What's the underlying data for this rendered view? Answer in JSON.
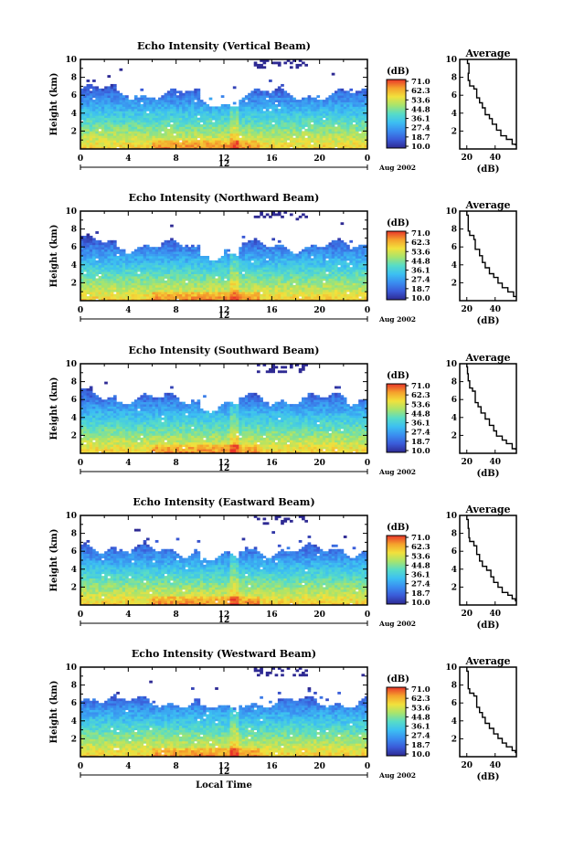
{
  "colors": {
    "colormap": [
      "#2e2a93",
      "#3a5bd8",
      "#3a8ef0",
      "#3cc0f2",
      "#57dcc7",
      "#a8e46c",
      "#f2e13c",
      "#f5a22c",
      "#e8352a"
    ],
    "no_data": "#ffffff",
    "line": "#000000"
  },
  "chart_data": [
    {
      "type": "heatmap",
      "title": "Echo Intensity (Vertical Beam)",
      "xlabel": "",
      "ylabel": "Height (km)",
      "xlim": [
        0,
        24
      ],
      "ylim": [
        0,
        10
      ],
      "xticks": [
        "0",
        "4",
        "8",
        "12",
        "16",
        "20",
        "0"
      ],
      "yticks": [
        "2",
        "4",
        "6",
        "8",
        "10"
      ],
      "secondary_tick": "12",
      "date_label": "Aug 2002",
      "colorbar": {
        "label": "(dB)",
        "ticks": [
          "71.0",
          "62.3",
          "53.6",
          "44.8",
          "36.1",
          "27.4",
          "18.7",
          "10.0"
        ],
        "range": [
          10.0,
          71.0
        ]
      },
      "average_profile": {
        "title": "Average",
        "xlabel": "(dB)",
        "xticks": [
          "20",
          "40"
        ],
        "xlim": [
          15,
          55
        ],
        "points": [
          [
            20.5,
            10.0
          ],
          [
            21.5,
            9.0
          ],
          [
            21.0,
            8.0
          ],
          [
            22.0,
            7.2
          ],
          [
            25.0,
            7.0
          ],
          [
            27.0,
            6.5
          ],
          [
            27.0,
            6.0
          ],
          [
            29.0,
            5.4
          ],
          [
            31.0,
            4.8
          ],
          [
            33.0,
            4.2
          ],
          [
            36.0,
            3.6
          ],
          [
            38.0,
            3.0
          ],
          [
            41.0,
            2.4
          ],
          [
            44.0,
            1.8
          ],
          [
            48.0,
            1.2
          ],
          [
            52.0,
            0.8
          ],
          [
            55.0,
            0.4
          ]
        ]
      }
    },
    {
      "type": "heatmap",
      "title": "Echo Intensity (Northward Beam)",
      "xlabel": "",
      "ylabel": "Height (km)",
      "xlim": [
        0,
        24
      ],
      "ylim": [
        0,
        10
      ],
      "xticks": [
        "0",
        "4",
        "8",
        "12",
        "16",
        "20",
        "0"
      ],
      "yticks": [
        "2",
        "4",
        "6",
        "8",
        "10"
      ],
      "secondary_tick": "12",
      "date_label": "Aug 2002",
      "colorbar": {
        "label": "(dB)",
        "ticks": [
          "71.0",
          "62.3",
          "53.6",
          "44.8",
          "36.1",
          "27.4",
          "18.7",
          "10.0"
        ],
        "range": [
          10.0,
          71.0
        ]
      },
      "average_profile": {
        "title": "Average",
        "xlabel": "(dB)",
        "xticks": [
          "20",
          "40"
        ],
        "xlim": [
          15,
          55
        ],
        "points": [
          [
            20.0,
            10.0
          ],
          [
            21.0,
            9.0
          ],
          [
            21.0,
            8.0
          ],
          [
            22.0,
            7.4
          ],
          [
            25.0,
            7.1
          ],
          [
            26.0,
            6.5
          ],
          [
            26.0,
            6.0
          ],
          [
            29.0,
            5.3
          ],
          [
            31.0,
            4.6
          ],
          [
            33.0,
            4.0
          ],
          [
            36.0,
            3.4
          ],
          [
            39.0,
            2.8
          ],
          [
            42.0,
            2.2
          ],
          [
            45.0,
            1.6
          ],
          [
            49.0,
            1.1
          ],
          [
            53.0,
            0.7
          ],
          [
            56.0,
            0.4
          ]
        ]
      }
    },
    {
      "type": "heatmap",
      "title": "Echo Intensity (Southward Beam)",
      "xlabel": "",
      "ylabel": "Height (km)",
      "xlim": [
        0,
        24
      ],
      "ylim": [
        0,
        10
      ],
      "xticks": [
        "0",
        "4",
        "8",
        "12",
        "16",
        "20",
        "0"
      ],
      "yticks": [
        "2",
        "4",
        "6",
        "8",
        "10"
      ],
      "secondary_tick": "12",
      "date_label": "Aug 2002",
      "colorbar": {
        "label": "(dB)",
        "ticks": [
          "71.0",
          "62.3",
          "53.6",
          "44.8",
          "36.1",
          "27.4",
          "18.7",
          "10.0"
        ],
        "range": [
          10.0,
          71.0
        ]
      },
      "average_profile": {
        "title": "Average",
        "xlabel": "(dB)",
        "xticks": [
          "20",
          "40"
        ],
        "xlim": [
          15,
          55
        ],
        "points": [
          [
            20.0,
            10.0
          ],
          [
            20.5,
            9.2
          ],
          [
            21.0,
            8.4
          ],
          [
            22.0,
            7.6
          ],
          [
            24.0,
            7.1
          ],
          [
            26.0,
            6.6
          ],
          [
            26.0,
            6.0
          ],
          [
            28.0,
            5.4
          ],
          [
            30.0,
            4.8
          ],
          [
            33.0,
            4.1
          ],
          [
            36.0,
            3.5
          ],
          [
            39.0,
            2.9
          ],
          [
            41.0,
            2.3
          ],
          [
            45.0,
            1.7
          ],
          [
            48.0,
            1.2
          ],
          [
            52.0,
            0.8
          ],
          [
            55.0,
            0.4
          ]
        ]
      }
    },
    {
      "type": "heatmap",
      "title": "Echo Intensity (Eastward Beam)",
      "xlabel": "",
      "ylabel": "Height (km)",
      "xlim": [
        0,
        24
      ],
      "ylim": [
        0,
        10
      ],
      "xticks": [
        "0",
        "4",
        "8",
        "12",
        "16",
        "20",
        "0"
      ],
      "yticks": [
        "2",
        "4",
        "6",
        "8",
        "10"
      ],
      "secondary_tick": "12",
      "date_label": "Aug 2002",
      "colorbar": {
        "label": "(dB)",
        "ticks": [
          "71.0",
          "62.3",
          "53.6",
          "44.8",
          "36.1",
          "27.4",
          "18.7",
          "10.0"
        ],
        "range": [
          10.0,
          71.0
        ]
      },
      "average_profile": {
        "title": "Average",
        "xlabel": "(dB)",
        "xticks": [
          "20",
          "40"
        ],
        "xlim": [
          15,
          55
        ],
        "points": [
          [
            20.0,
            10.0
          ],
          [
            21.0,
            9.0
          ],
          [
            21.5,
            8.0
          ],
          [
            22.0,
            7.2
          ],
          [
            25.0,
            6.9
          ],
          [
            27.0,
            6.4
          ],
          [
            27.0,
            5.9
          ],
          [
            29.0,
            5.3
          ],
          [
            31.0,
            4.7
          ],
          [
            34.0,
            4.1
          ],
          [
            37.0,
            3.5
          ],
          [
            39.0,
            2.9
          ],
          [
            42.0,
            2.3
          ],
          [
            45.0,
            1.7
          ],
          [
            49.0,
            1.2
          ],
          [
            52.0,
            0.8
          ],
          [
            55.0,
            0.4
          ]
        ]
      }
    },
    {
      "type": "heatmap",
      "title": "Echo Intensity (Westward Beam)",
      "xlabel": "Local Time",
      "ylabel": "Height (km)",
      "xlim": [
        0,
        24
      ],
      "ylim": [
        0,
        10
      ],
      "xticks": [
        "0",
        "4",
        "8",
        "12",
        "16",
        "20",
        "0"
      ],
      "yticks": [
        "2",
        "4",
        "6",
        "8",
        "10"
      ],
      "secondary_tick": "12",
      "date_label": "Aug 2002",
      "colorbar": {
        "label": "(dB)",
        "ticks": [
          "71.0",
          "62.3",
          "53.6",
          "44.8",
          "36.1",
          "27.4",
          "18.7",
          "10.0"
        ],
        "range": [
          10.0,
          71.0
        ]
      },
      "average_profile": {
        "title": "Average",
        "xlabel": "(dB)",
        "xticks": [
          "20",
          "40"
        ],
        "xlim": [
          15,
          55
        ],
        "points": [
          [
            20.0,
            10.0
          ],
          [
            21.0,
            9.0
          ],
          [
            21.0,
            8.0
          ],
          [
            22.0,
            7.3
          ],
          [
            25.0,
            7.0
          ],
          [
            27.0,
            6.5
          ],
          [
            27.0,
            5.9
          ],
          [
            29.0,
            5.3
          ],
          [
            31.0,
            4.7
          ],
          [
            33.0,
            4.1
          ],
          [
            36.0,
            3.5
          ],
          [
            39.0,
            2.9
          ],
          [
            42.0,
            2.3
          ],
          [
            45.0,
            1.7
          ],
          [
            48.0,
            1.2
          ],
          [
            52.0,
            0.8
          ],
          [
            55.0,
            0.4
          ]
        ]
      }
    }
  ]
}
